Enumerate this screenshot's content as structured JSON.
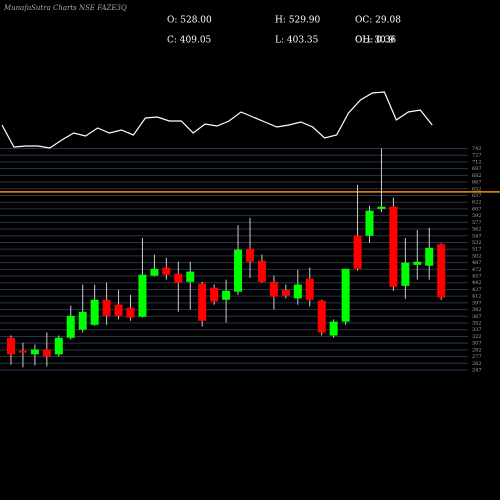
{
  "chart_data": {
    "type": "candlestick",
    "title": "MunafaSutra Charts NSE FAZE3Q",
    "info": [
      [
        "O: 528.00",
        "H: 529.90",
        "OC: 29.08"
      ],
      [
        "C: 409.05",
        "L: 403.35",
        "OH: 0.36"
      ],
      [
        "",
        "",
        "OL: 30.9"
      ]
    ],
    "open": [
      319,
      290,
      282,
      293,
      282,
      319,
      337,
      348,
      404,
      393,
      386,
      366,
      458,
      476,
      462,
      444,
      440,
      431,
      404,
      422,
      518,
      491,
      444,
      426,
      407,
      451,
      402,
      324,
      355,
      547,
      547,
      607,
      612,
      435,
      482,
      480,
      528
    ],
    "close": [
      282,
      286,
      293,
      277,
      319,
      368,
      377,
      404,
      368,
      368,
      364,
      460,
      473,
      460,
      442,
      467,
      357,
      400,
      424,
      516,
      489,
      444,
      411,
      413,
      438,
      404,
      331,
      355,
      473,
      473,
      603,
      612,
      433,
      487,
      489,
      520,
      409.05
    ],
    "high": [
      324,
      308,
      304,
      331,
      324,
      391,
      438,
      438,
      442,
      426,
      415,
      542,
      505,
      498,
      489,
      489,
      444,
      438,
      449,
      571,
      587,
      505,
      458,
      438,
      471,
      476,
      404,
      360,
      473,
      661,
      614,
      742,
      632,
      542,
      560,
      565,
      529.9
    ],
    "low": [
      259,
      253,
      257,
      255,
      277,
      315,
      331,
      346,
      348,
      360,
      357,
      364,
      456,
      449,
      377,
      382,
      344,
      393,
      353,
      415,
      453,
      442,
      382,
      407,
      393,
      389,
      324,
      319,
      348,
      469,
      531,
      600,
      424,
      406,
      449,
      449,
      403.35
    ],
    "up_color": "#00ff00",
    "down_color": "#ff0000",
    "hline": {
      "value": 645,
      "color": "#ff8c00"
    },
    "ylim": [
      247,
      742
    ],
    "yticks": [
      742,
      727,
      712,
      697,
      682,
      667,
      652,
      637,
      622,
      607,
      592,
      577,
      562,
      547,
      532,
      517,
      502,
      487,
      472,
      457,
      442,
      427,
      412,
      397,
      382,
      367,
      352,
      337,
      322,
      307,
      292,
      277,
      262,
      247
    ],
    "grid": true,
    "indicator": {
      "values": [
        75,
        53,
        54,
        54,
        52,
        60,
        67,
        64,
        72,
        67,
        70,
        65,
        82,
        83,
        79,
        79,
        67,
        76,
        74,
        79,
        88,
        83,
        78,
        73,
        75,
        78,
        73,
        62,
        65,
        87,
        100,
        107,
        108,
        80,
        88,
        90,
        75
      ],
      "ylim": [
        40,
        115
      ],
      "color": "#ffffff"
    }
  }
}
